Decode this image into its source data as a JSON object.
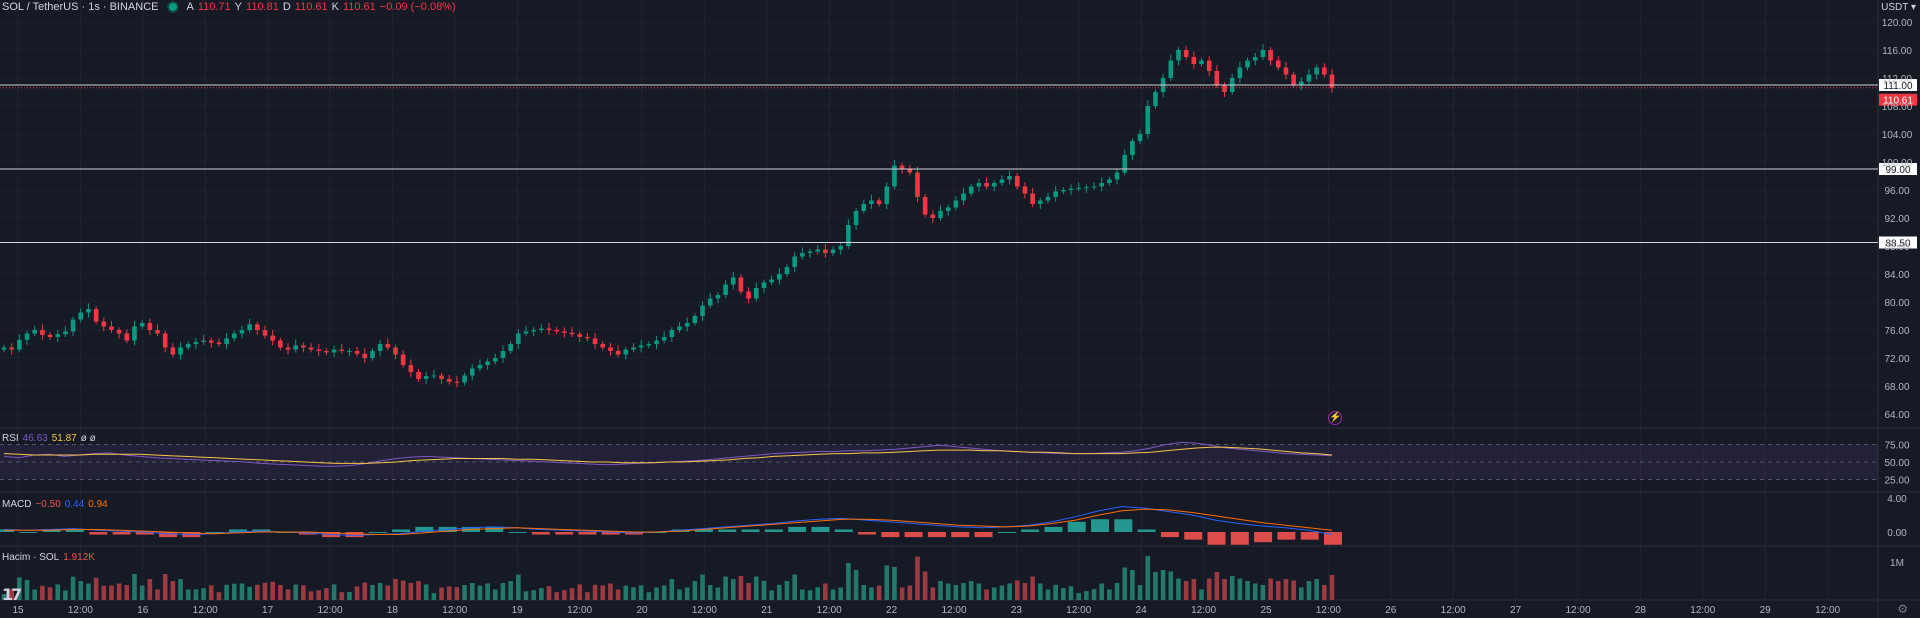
{
  "header": {
    "symbol": "SOL / TetherUS · 1s · BINANCE",
    "open_label": "A",
    "open": "110.71",
    "high_label": "Y",
    "high": "110.81",
    "low_label": "D",
    "low": "110.61",
    "close_label": "K",
    "close": "110.61",
    "change": "−0.09 (−0.08%)",
    "currency": "USDT"
  },
  "rsi_label": {
    "name": "RSI",
    "v1": "46.63",
    "v2": "51.87",
    "v3": "ø ø"
  },
  "macd_label": {
    "name": "MACD",
    "v1": "−0.50",
    "v2": "0.44",
    "v3": "0.94"
  },
  "volume_label": {
    "name": "Hacim · SOL",
    "v1": "1.912K"
  },
  "price_axis": {
    "ticks": [
      "120.00",
      "116.00",
      "112.00",
      "108.00",
      "104.00",
      "100.00",
      "96.00",
      "92.00",
      "88.00",
      "84.00",
      "80.00",
      "76.00",
      "72.00",
      "68.00",
      "64.00"
    ],
    "current_price_tag": "110.61",
    "hline_tags": [
      "111.00",
      "99.00",
      "88.50"
    ]
  },
  "rsi_axis": [
    "75.00",
    "50.00",
    "25.00"
  ],
  "macd_axis": [
    "4.00",
    "0.00"
  ],
  "volume_axis": [
    "1M"
  ],
  "time_axis": [
    "15",
    "12:00",
    "16",
    "12:00",
    "17",
    "12:00",
    "18",
    "12:00",
    "19",
    "12:00",
    "20",
    "12:00",
    "21",
    "12:00",
    "22",
    "12:00",
    "23",
    "12:00",
    "24",
    "12:00",
    "25",
    "12:00",
    "26",
    "12:00",
    "27",
    "12:00",
    "28",
    "12:00",
    "29",
    "12:00"
  ],
  "chart_data": {
    "type": "candlestick",
    "ylim": [
      62,
      122
    ],
    "horizontal_lines": [
      111.0,
      99.0,
      88.5
    ],
    "current_price": 110.61,
    "colors": {
      "up": "#089981",
      "down": "#f23645",
      "bg": "#161a25",
      "hline": "#d1d4dc",
      "rsi": "#7e57c2",
      "rsi_ma": "#f7c548"
    },
    "closes": [
      73.5,
      73.2,
      74.6,
      75.5,
      76.0,
      75.3,
      75.0,
      75.4,
      75.8,
      77.5,
      78.5,
      79.0,
      77.2,
      76.5,
      76.0,
      75.5,
      74.5,
      76.5,
      77.0,
      76.0,
      75.5,
      73.5,
      72.5,
      73.5,
      74.0,
      74.3,
      74.5,
      74.2,
      74.0,
      74.8,
      75.5,
      76.0,
      76.8,
      76.0,
      75.2,
      74.5,
      73.5,
      73.2,
      73.8,
      73.5,
      73.2,
      73.0,
      72.8,
      73.2,
      73.0,
      73.0,
      72.6,
      72.0,
      73.0,
      74.0,
      73.5,
      72.5,
      71.0,
      70.0,
      69.0,
      69.4,
      69.5,
      69.0,
      68.6,
      68.5,
      69.5,
      70.5,
      71.0,
      71.5,
      72.0,
      73.0,
      74.0,
      75.5,
      75.8,
      76.0,
      76.2,
      76.0,
      75.8,
      75.6,
      75.4,
      75.0,
      74.8,
      74.0,
      73.5,
      73.0,
      72.5,
      73.2,
      73.5,
      73.8,
      74.0,
      74.5,
      75.0,
      76.0,
      76.5,
      77.0,
      78.0,
      79.5,
      80.5,
      81.0,
      82.5,
      83.5,
      81.5,
      80.5,
      82.0,
      82.8,
      83.2,
      84.0,
      85.0,
      86.5,
      87.0,
      87.2,
      87.5,
      87.0,
      87.5,
      88.0,
      91.0,
      93.0,
      94.0,
      94.5,
      94.0,
      96.5,
      99.5,
      99.0,
      98.5,
      95.0,
      92.5,
      92.0,
      93.0,
      93.5,
      94.5,
      95.5,
      96.5,
      97.0,
      96.5,
      97.0,
      97.5,
      98.0,
      96.5,
      95.5,
      94.0,
      94.5,
      95.0,
      95.8,
      96.0,
      96.2,
      96.3,
      96.4,
      96.5,
      97.0,
      97.5,
      98.5,
      101.0,
      103.0,
      104.0,
      108.0,
      110.0,
      112.0,
      114.5,
      116.0,
      115.0,
      114.0,
      114.5,
      113.0,
      111.0,
      110.0,
      112.0,
      113.5,
      114.5,
      115.0,
      116.0,
      114.5,
      113.5,
      112.5,
      111.0,
      111.5,
      112.5,
      113.5,
      112.5,
      110.61
    ],
    "rsi": [
      58,
      56,
      60,
      61,
      58,
      60,
      62,
      63,
      60,
      58,
      56,
      55,
      54,
      53,
      52,
      51,
      50,
      48,
      47,
      46,
      45,
      44,
      44,
      45,
      48,
      52,
      55,
      57,
      58,
      57,
      56,
      55,
      54,
      53,
      52,
      51,
      50,
      49,
      48,
      47,
      46,
      47,
      48,
      49,
      50,
      51,
      52,
      54,
      56,
      58,
      60,
      62,
      63,
      64,
      65,
      65,
      66,
      66,
      67,
      68,
      70,
      72,
      74,
      72,
      70,
      68,
      66,
      65,
      64,
      63,
      62,
      62,
      62,
      63,
      64,
      66,
      70,
      75,
      78,
      77,
      74,
      70,
      68,
      66,
      64,
      62,
      61,
      60,
      59
    ],
    "rsi_ma": [
      62,
      61,
      60,
      60,
      60,
      60,
      61,
      61,
      61,
      61,
      60,
      59,
      58,
      57,
      56,
      55,
      54,
      53,
      52,
      51,
      50,
      49,
      48,
      48,
      48,
      49,
      50,
      52,
      53,
      54,
      55,
      55,
      55,
      55,
      54,
      54,
      53,
      52,
      51,
      50,
      50,
      49,
      49,
      49,
      50,
      50,
      51,
      52,
      53,
      55,
      56,
      58,
      59,
      60,
      61,
      62,
      62,
      63,
      63,
      64,
      65,
      66,
      67,
      67,
      67,
      66,
      66,
      65,
      64,
      64,
      63,
      62,
      62,
      62,
      62,
      63,
      64,
      66,
      68,
      70,
      71,
      71,
      70,
      69,
      67,
      65,
      63,
      62,
      60
    ],
    "macd": [
      0.3,
      0.2,
      0.3,
      0.4,
      0.2,
      0.1,
      0.0,
      -0.2,
      -0.3,
      -0.2,
      0.0,
      0.1,
      0.0,
      -0.1,
      -0.3,
      -0.4,
      -0.3,
      -0.2,
      0.1,
      0.3,
      0.5,
      0.6,
      0.5,
      0.3,
      0.2,
      0.1,
      0.0,
      -0.1,
      0.0,
      0.2,
      0.4,
      0.6,
      0.8,
      1.0,
      1.3,
      1.5,
      1.6,
      1.4,
      1.2,
      1.0,
      0.8,
      0.6,
      0.5,
      0.6,
      0.8,
      1.2,
      1.8,
      2.5,
      3.0,
      2.8,
      2.4,
      2.0,
      1.4,
      1.0,
      0.7,
      0.5,
      0.2,
      -0.3
    ],
    "macd_signal": [
      0.2,
      0.2,
      0.2,
      0.3,
      0.3,
      0.2,
      0.1,
      0.0,
      -0.1,
      -0.2,
      -0.1,
      0.0,
      0.0,
      0.0,
      -0.1,
      -0.2,
      -0.3,
      -0.3,
      -0.1,
      0.1,
      0.3,
      0.4,
      0.5,
      0.4,
      0.3,
      0.2,
      0.1,
      0.0,
      0.0,
      0.1,
      0.3,
      0.5,
      0.7,
      0.9,
      1.1,
      1.3,
      1.5,
      1.5,
      1.4,
      1.2,
      1.0,
      0.8,
      0.7,
      0.6,
      0.7,
      1.0,
      1.4,
      2.0,
      2.5,
      2.7,
      2.6,
      2.3,
      1.9,
      1.5,
      1.1,
      0.8,
      0.5,
      0.2
    ],
    "volume_max": 1000000
  }
}
